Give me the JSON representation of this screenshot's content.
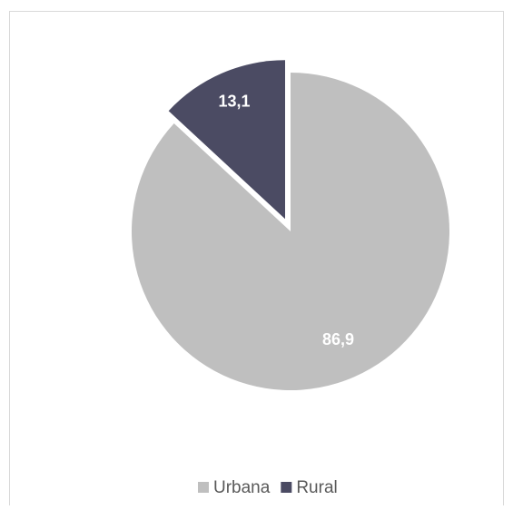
{
  "chart_data": {
    "type": "pie",
    "categories": [
      "Urbana",
      "Rural"
    ],
    "values": [
      86.9,
      13.1
    ],
    "value_labels": [
      "86,9",
      "13,1"
    ],
    "colors": [
      "#bfbfbf",
      "#4b4b63"
    ],
    "legend": "bottom"
  }
}
